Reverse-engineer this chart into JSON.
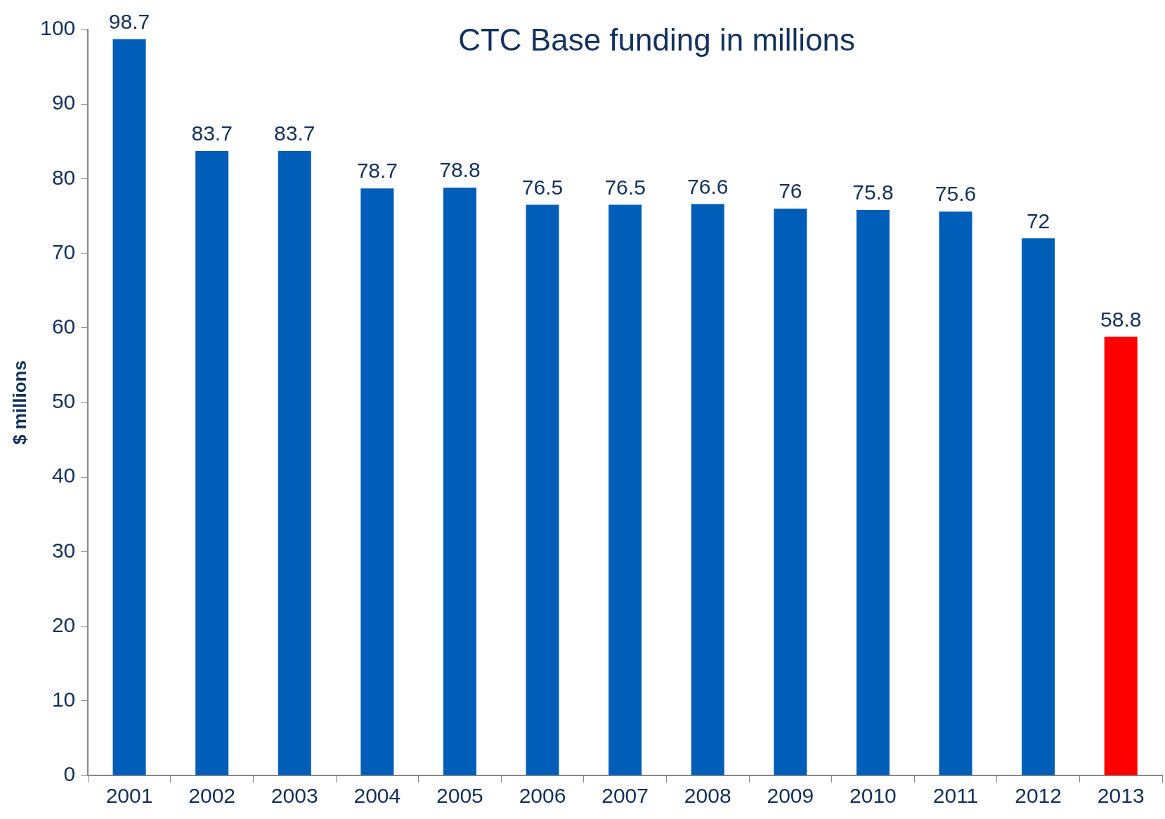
{
  "chart_data": {
    "type": "bar",
    "title": "CTC Base funding in millions",
    "ylabel": "$ millions",
    "categories": [
      "2001",
      "2002",
      "2003",
      "2004",
      "2005",
      "2006",
      "2007",
      "2008",
      "2009",
      "2010",
      "2011",
      "2012",
      "2013"
    ],
    "values": [
      98.7,
      83.7,
      83.7,
      78.7,
      78.8,
      76.5,
      76.5,
      76.6,
      76,
      75.8,
      75.6,
      72,
      58.8
    ],
    "colors": [
      "#005eb8",
      "#005eb8",
      "#005eb8",
      "#005eb8",
      "#005eb8",
      "#005eb8",
      "#005eb8",
      "#005eb8",
      "#005eb8",
      "#005eb8",
      "#005eb8",
      "#005eb8",
      "#ff0000"
    ],
    "ylim": [
      0,
      100
    ],
    "yticks": [
      0,
      10,
      20,
      30,
      40,
      50,
      60,
      70,
      80,
      90,
      100
    ],
    "data_labels": true,
    "grid": false,
    "legend": false
  }
}
